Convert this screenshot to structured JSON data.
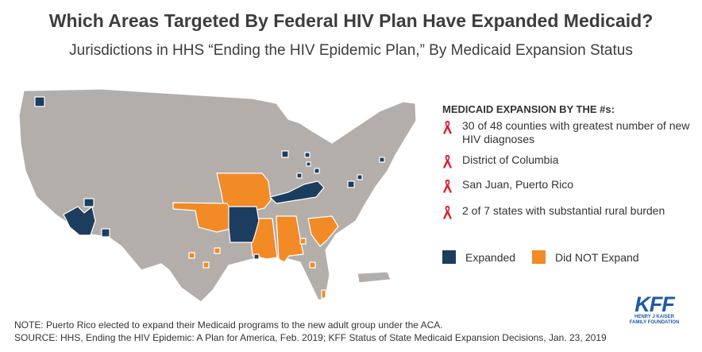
{
  "title": "Which Areas Targeted By Federal HIV Plan Have Expanded Medicaid?",
  "subtitle": "Jurisdictions in HHS “Ending the HIV Epidemic Plan,” By Medicaid Expansion Status",
  "colors": {
    "expanded": "#1c3d5e",
    "not_expanded": "#f28a26",
    "other": "#b4aeaa",
    "ribbon": "#d9232d"
  },
  "legend": {
    "heading": "MEDICAID EXPANSION BY THE #s:",
    "items": [
      "30 of 48 counties with greatest number of new HIV diagnoses",
      "District of Columbia",
      "San Juan, Puerto Rico",
      "2 of 7 states with substantial  rural burden"
    ]
  },
  "key": {
    "expanded_label": "Expanded",
    "not_expanded_label": "Did NOT Expand"
  },
  "notes": {
    "note": "NOTE: Puerto Rico elected to expand their Medicaid programs to the new adult group under the ACA.",
    "source": "SOURCE: HHS, Ending the HIV Epidemic: A Plan for America, Feb. 2019; KFF Status of State Medicaid Expansion Decisions, Jan. 23, 2019"
  },
  "logo": {
    "mark": "KFF",
    "line1": "HENRY J KAISER",
    "line2": "FAMILY FOUNDATION"
  },
  "map": {
    "expanded_states": [
      "Arkansas",
      "Kentucky"
    ],
    "not_expanded_states": [
      "Missouri",
      "Oklahoma",
      "Mississippi",
      "Alabama",
      "South Carolina"
    ],
    "icon": "us-map-with-puerto-rico"
  }
}
